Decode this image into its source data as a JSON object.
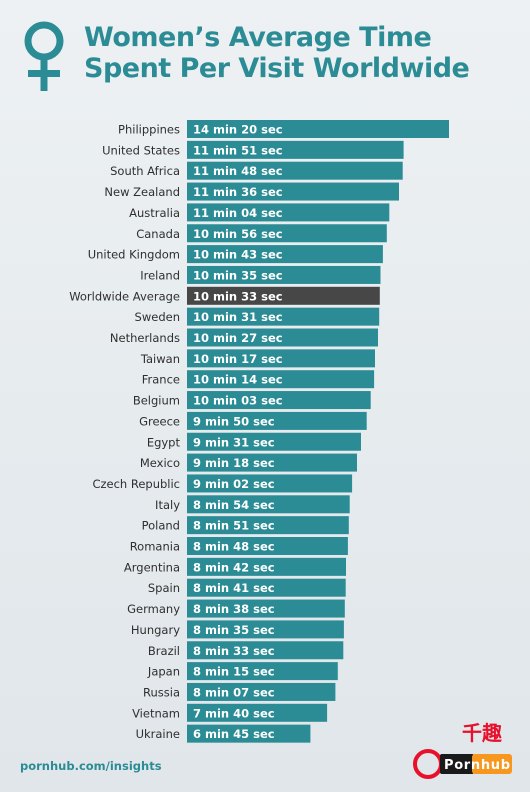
{
  "header": {
    "title_line1": "Women’s Average Time",
    "title_line2": "Spent Per Visit Worldwide",
    "icon": "venus-icon"
  },
  "footer": {
    "source": "pornhub.com/insights"
  },
  "watermark": {
    "logo_text": "Pornhub",
    "stamp_text": "千趣"
  },
  "colors": {
    "bar": "#2c8c95",
    "highlight_bar": "#474747",
    "title": "#2c8c95",
    "background": "#e6ebee"
  },
  "chart_data": {
    "type": "bar",
    "orientation": "horizontal",
    "unit": "minutes",
    "highlight": "Worldwide Average",
    "categories": [
      "Philippines",
      "United States",
      "South Africa",
      "New Zealand",
      "Australia",
      "Canada",
      "United Kingdom",
      "Ireland",
      "Worldwide Average",
      "Sweden",
      "Netherlands",
      "Taiwan",
      "France",
      "Belgium",
      "Greece",
      "Egypt",
      "Mexico",
      "Czech Republic",
      "Italy",
      "Poland",
      "Romania",
      "Argentina",
      "Spain",
      "Germany",
      "Hungary",
      "Brazil",
      "Japan",
      "Russia",
      "Vietnam",
      "Ukraine"
    ],
    "labels": [
      "14 min 20 sec",
      "11 min 51 sec",
      "11 min 48 sec",
      "11 min 36 sec",
      "11 min 04 sec",
      "10 min 56 sec",
      "10 min 43 sec",
      "10 min 35 sec",
      "10 min 33 sec",
      "10 min 31 sec",
      "10 min 27 sec",
      "10 min 17 sec",
      "10 min 14 sec",
      "10 min 03 sec",
      "9 min 50 sec",
      "9 min 31 sec",
      "9 min 18 sec",
      "9 min 02 sec",
      "8 min 54 sec",
      "8 min 51 sec",
      "8 min 48 sec",
      "8 min 42 sec",
      "8 min 41 sec",
      "8 min 38 sec",
      "8 min 35 sec",
      "8 min 33 sec",
      "8 min 15 sec",
      "8 min 07 sec",
      "7 min 40 sec",
      "6 min 45 sec"
    ],
    "values": [
      14.333,
      11.85,
      11.8,
      11.6,
      11.067,
      10.933,
      10.717,
      10.583,
      10.55,
      10.517,
      10.45,
      10.283,
      10.233,
      10.05,
      9.833,
      9.517,
      9.3,
      9.033,
      8.9,
      8.85,
      8.8,
      8.7,
      8.683,
      8.633,
      8.583,
      8.55,
      8.25,
      8.117,
      7.667,
      6.75
    ]
  }
}
